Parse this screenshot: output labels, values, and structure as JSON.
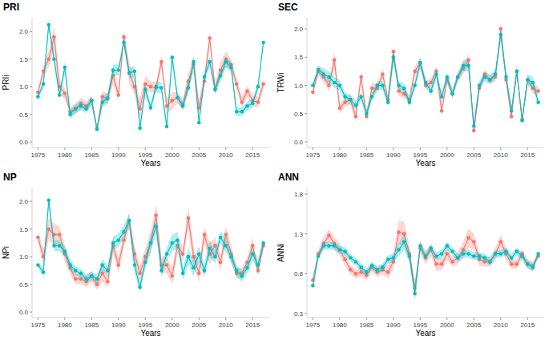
{
  "chart_data": [
    {
      "type": "line",
      "title": "PRI",
      "x_label": "Years",
      "y_label": "PRIi",
      "marker": "circle",
      "x": [
        1975,
        1976,
        1977,
        1978,
        1979,
        1980,
        1981,
        1982,
        1983,
        1984,
        1985,
        1986,
        1987,
        1988,
        1989,
        1990,
        1991,
        1992,
        1993,
        1994,
        1995,
        1996,
        1997,
        1998,
        1999,
        2000,
        2001,
        2002,
        2003,
        2004,
        2005,
        2006,
        2007,
        2008,
        2009,
        2010,
        2011,
        2012,
        2013,
        2014,
        2015,
        2016,
        2017
      ],
      "xlim": [
        1973.9,
        2018.1
      ],
      "xticks": [
        1975,
        1980,
        1985,
        1990,
        1995,
        2000,
        2005,
        2010,
        2015
      ],
      "ylim": [
        -0.1,
        2.25
      ],
      "yticks": [
        {
          "value": 0,
          "label": "0.0"
        },
        {
          "value": 0.5,
          "label": "0.5"
        },
        {
          "value": 1,
          "label": "1.0"
        },
        {
          "value": 1.5,
          "label": "1.5"
        },
        {
          "value": 2,
          "label": "2.0"
        }
      ],
      "series": [
        {
          "color": "#F8766D",
          "values": [
            0.9,
            1.28,
            1.5,
            1.9,
            1.0,
            0.88,
            0.55,
            0.6,
            0.7,
            0.65,
            0.75,
            0.25,
            0.82,
            0.78,
            1.2,
            0.85,
            1.9,
            1.25,
            1.0,
            0.6,
            1.05,
            1.0,
            0.98,
            1.45,
            0.65,
            0.75,
            0.8,
            0.68,
            1.1,
            1.4,
            0.62,
            1.1,
            1.88,
            0.95,
            1.3,
            1.5,
            1.4,
            1.05,
            0.72,
            0.92,
            0.75,
            0.72,
            1.05
          ],
          "error": [
            0.05,
            0.1,
            0.15,
            0.2,
            0.15,
            0.1,
            0.08,
            0.1,
            0.1,
            0.08,
            0.1,
            0.05,
            0.1,
            0.1,
            0.15,
            0.1,
            0.1,
            0.2,
            0.15,
            0.2,
            0.15,
            0.1,
            0.1,
            0.1,
            0.15,
            0.15,
            0.1,
            0.1,
            0.15,
            0.15,
            0.15,
            0.15,
            0.1,
            0.1,
            0.15,
            0.15,
            0.1,
            0.1,
            0.1,
            0.1,
            0.1,
            0.1,
            0.1
          ]
        },
        {
          "color": "#00BFC4",
          "values": [
            0.82,
            1.05,
            2.12,
            1.5,
            0.85,
            1.35,
            0.5,
            0.6,
            0.65,
            0.6,
            0.75,
            0.23,
            0.72,
            0.8,
            1.3,
            1.3,
            1.8,
            1.25,
            1.28,
            0.25,
            0.95,
            0.62,
            1.0,
            0.98,
            0.28,
            1.53,
            0.8,
            0.65,
            0.98,
            1.45,
            0.35,
            1.18,
            1.45,
            0.95,
            1.2,
            1.45,
            1.35,
            0.55,
            0.55,
            0.65,
            0.7,
            1.0,
            1.8
          ],
          "error": [
            0.05,
            0.08,
            0.1,
            0.1,
            0.08,
            0.1,
            0.08,
            0.08,
            0.08,
            0.08,
            0.08,
            0.05,
            0.1,
            0.1,
            0.1,
            0.1,
            0.08,
            0.1,
            0.1,
            0.05,
            0.1,
            0.08,
            0.1,
            0.1,
            0.05,
            0.1,
            0.08,
            0.08,
            0.1,
            0.1,
            0.05,
            0.1,
            0.1,
            0.08,
            0.1,
            0.1,
            0.1,
            0.08,
            0.08,
            0.08,
            0.08,
            0.08,
            0.05
          ]
        }
      ]
    },
    {
      "type": "line",
      "title": "SEC",
      "x_label": "Years",
      "y_label": "TRWi",
      "marker": "circle",
      "x": [
        1975,
        1976,
        1977,
        1978,
        1979,
        1980,
        1981,
        1982,
        1983,
        1984,
        1985,
        1986,
        1987,
        1988,
        1989,
        1990,
        1991,
        1992,
        1993,
        1994,
        1995,
        1996,
        1997,
        1998,
        1999,
        2000,
        2001,
        2002,
        2003,
        2004,
        2005,
        2006,
        2007,
        2008,
        2009,
        2010,
        2011,
        2012,
        2013,
        2014,
        2015,
        2016,
        2017
      ],
      "xlim": [
        1973.9,
        2018.1
      ],
      "xticks": [
        1975,
        1980,
        1985,
        1990,
        1995,
        2000,
        2005,
        2010,
        2015
      ],
      "ylim": [
        -0.1,
        2.2
      ],
      "yticks": [
        {
          "value": 0,
          "label": "0.0"
        },
        {
          "value": 0.5,
          "label": "0.5"
        },
        {
          "value": 1,
          "label": "1.0"
        },
        {
          "value": 1.5,
          "label": "1.5"
        },
        {
          "value": 2,
          "label": "2.0"
        }
      ],
      "series": [
        {
          "color": "#F8766D",
          "values": [
            0.88,
            1.25,
            1.15,
            1.0,
            1.45,
            0.6,
            0.7,
            0.75,
            0.45,
            1.15,
            0.45,
            0.95,
            0.95,
            1.2,
            0.75,
            1.6,
            0.9,
            0.85,
            0.75,
            1.25,
            1.4,
            1.0,
            1.05,
            1.25,
            0.55,
            1.1,
            0.85,
            1.15,
            1.3,
            1.45,
            0.2,
            0.95,
            1.2,
            1.1,
            1.15,
            2.0,
            1.1,
            0.45,
            1.25,
            0.4,
            1.1,
            0.95,
            0.9
          ],
          "error": [
            0.05,
            0.08,
            0.1,
            0.1,
            0.15,
            0.1,
            0.08,
            0.1,
            0.1,
            0.1,
            0.08,
            0.1,
            0.08,
            0.1,
            0.08,
            0.1,
            0.08,
            0.08,
            0.08,
            0.1,
            0.1,
            0.08,
            0.08,
            0.1,
            0.1,
            0.08,
            0.08,
            0.08,
            0.1,
            0.1,
            0.08,
            0.08,
            0.08,
            0.08,
            0.08,
            0.1,
            0.1,
            0.08,
            0.1,
            0.05,
            0.08,
            0.1,
            0.08
          ]
        },
        {
          "color": "#00BFC4",
          "values": [
            1.0,
            1.28,
            1.2,
            1.15,
            1.05,
            1.0,
            0.8,
            0.75,
            0.65,
            0.8,
            0.5,
            0.8,
            1.0,
            1.0,
            0.7,
            1.5,
            1.0,
            0.95,
            0.7,
            1.0,
            1.4,
            1.05,
            0.9,
            1.2,
            0.8,
            1.15,
            0.85,
            1.15,
            1.35,
            1.35,
            0.28,
            1.0,
            1.15,
            1.1,
            1.2,
            1.9,
            1.15,
            0.55,
            1.25,
            0.38,
            1.1,
            1.05,
            0.7
          ],
          "error": [
            0.05,
            0.08,
            0.1,
            0.1,
            0.1,
            0.1,
            0.08,
            0.08,
            0.08,
            0.08,
            0.08,
            0.08,
            0.08,
            0.08,
            0.08,
            0.1,
            0.08,
            0.08,
            0.08,
            0.08,
            0.1,
            0.08,
            0.08,
            0.1,
            0.08,
            0.08,
            0.08,
            0.08,
            0.1,
            0.1,
            0.05,
            0.08,
            0.08,
            0.08,
            0.08,
            0.1,
            0.08,
            0.08,
            0.08,
            0.05,
            0.1,
            0.1,
            0.08
          ]
        }
      ]
    },
    {
      "type": "line",
      "title": "NP",
      "x_label": "Years",
      "y_label": "NPi",
      "marker": "circle",
      "x": [
        1975,
        1976,
        1977,
        1978,
        1979,
        1980,
        1981,
        1982,
        1983,
        1984,
        1985,
        1986,
        1987,
        1988,
        1989,
        1990,
        1991,
        1992,
        1993,
        1994,
        1995,
        1996,
        1997,
        1998,
        1999,
        2000,
        2001,
        2002,
        2003,
        2004,
        2005,
        2006,
        2007,
        2008,
        2009,
        2010,
        2011,
        2012,
        2013,
        2014,
        2015,
        2016,
        2017
      ],
      "xlim": [
        1973.9,
        2018.1
      ],
      "xticks": [
        1975,
        1980,
        1985,
        1990,
        1995,
        2000,
        2005,
        2010,
        2015
      ],
      "ylim": [
        -0.1,
        2.25
      ],
      "yticks": [
        {
          "value": 0,
          "label": "0.0"
        },
        {
          "value": 0.5,
          "label": "0.5"
        },
        {
          "value": 1,
          "label": "1.0"
        },
        {
          "value": 1.5,
          "label": "1.5"
        },
        {
          "value": 2,
          "label": "2.0"
        }
      ],
      "series": [
        {
          "color": "#F8766D",
          "values": [
            1.35,
            1.0,
            1.5,
            1.4,
            1.4,
            1.05,
            0.8,
            0.6,
            0.6,
            0.55,
            0.65,
            0.5,
            0.7,
            0.55,
            1.2,
            0.85,
            1.3,
            1.65,
            1.05,
            0.7,
            1.0,
            1.25,
            1.75,
            0.85,
            0.85,
            0.65,
            1.2,
            1.05,
            1.7,
            1.0,
            0.7,
            1.4,
            1.05,
            1.2,
            0.9,
            1.4,
            1.05,
            0.7,
            0.7,
            0.9,
            1.2,
            0.75,
            1.2
          ],
          "error": [
            0.1,
            0.15,
            0.2,
            0.2,
            0.15,
            0.15,
            0.1,
            0.1,
            0.1,
            0.1,
            0.1,
            0.1,
            0.15,
            0.1,
            0.15,
            0.15,
            0.15,
            0.15,
            0.15,
            0.15,
            0.15,
            0.2,
            0.2,
            0.15,
            0.15,
            0.15,
            0.15,
            0.15,
            0.2,
            0.2,
            0.15,
            0.15,
            0.2,
            0.15,
            0.15,
            0.15,
            0.15,
            0.1,
            0.1,
            0.1,
            0.15,
            0.1,
            0.1
          ]
        },
        {
          "color": "#00BFC4",
          "values": [
            0.85,
            0.72,
            2.02,
            1.2,
            1.2,
            1.1,
            0.85,
            0.75,
            0.7,
            0.6,
            0.65,
            0.6,
            0.85,
            0.75,
            1.25,
            1.3,
            1.45,
            1.65,
            0.85,
            0.45,
            0.9,
            1.25,
            1.55,
            0.75,
            1.05,
            1.25,
            1.3,
            0.7,
            1.0,
            0.8,
            1.05,
            0.75,
            1.15,
            1.0,
            1.35,
            1.2,
            1.0,
            0.75,
            0.65,
            0.8,
            1.05,
            0.85,
            1.25
          ],
          "error": [
            0.05,
            0.08,
            0.1,
            0.1,
            0.1,
            0.1,
            0.1,
            0.08,
            0.08,
            0.08,
            0.08,
            0.08,
            0.1,
            0.1,
            0.12,
            0.12,
            0.12,
            0.12,
            0.15,
            0.1,
            0.12,
            0.15,
            0.15,
            0.12,
            0.12,
            0.15,
            0.15,
            0.12,
            0.15,
            0.15,
            0.15,
            0.12,
            0.15,
            0.12,
            0.12,
            0.12,
            0.12,
            0.1,
            0.1,
            0.1,
            0.12,
            0.1,
            0.08
          ]
        }
      ]
    },
    {
      "type": "line",
      "title": "ANN",
      "x_label": "Years",
      "y_label": "ANNi",
      "marker": "circle",
      "x": [
        1975,
        1976,
        1977,
        1978,
        1979,
        1980,
        1981,
        1982,
        1983,
        1984,
        1985,
        1986,
        1987,
        1988,
        1989,
        1990,
        1991,
        1992,
        1993,
        1994,
        1995,
        1996,
        1997,
        1998,
        1999,
        2000,
        2001,
        2002,
        2003,
        2004,
        2005,
        2006,
        2007,
        2008,
        2009,
        2010,
        2011,
        2012,
        2013,
        2014,
        2015,
        2016,
        2017
      ],
      "xlim": [
        1973.9,
        2018.1
      ],
      "xticks": [
        1975,
        1980,
        1985,
        1990,
        1995,
        2000,
        2005,
        2010,
        2015
      ],
      "ylim": [
        0.25,
        1.88
      ],
      "yticks": [
        0.3,
        0.8,
        1.3,
        1.8
      ],
      "series": [
        {
          "color": "#F8766D",
          "values": [
            0.72,
            1.05,
            1.18,
            1.28,
            1.18,
            1.1,
            0.98,
            0.85,
            0.8,
            0.82,
            0.78,
            0.88,
            0.82,
            0.85,
            0.82,
            0.95,
            1.32,
            1.3,
            1.05,
            0.62,
            1.12,
            1.0,
            1.1,
            0.92,
            0.92,
            1.05,
            0.95,
            1.0,
            1.1,
            1.25,
            1.2,
            0.98,
            0.95,
            0.95,
            1.05,
            1.2,
            1.05,
            0.92,
            0.92,
            1.05,
            0.92,
            0.9,
            1.02
          ],
          "error": [
            0.03,
            0.05,
            0.08,
            0.08,
            0.08,
            0.08,
            0.08,
            0.06,
            0.06,
            0.06,
            0.06,
            0.06,
            0.06,
            0.06,
            0.08,
            0.1,
            0.15,
            0.15,
            0.1,
            0.1,
            0.08,
            0.08,
            0.08,
            0.08,
            0.08,
            0.08,
            0.06,
            0.08,
            0.1,
            0.12,
            0.1,
            0.08,
            0.06,
            0.06,
            0.08,
            0.08,
            0.08,
            0.06,
            0.06,
            0.06,
            0.06,
            0.06,
            0.03
          ]
        },
        {
          "color": "#00BFC4",
          "values": [
            0.65,
            1.02,
            1.15,
            1.15,
            1.15,
            1.1,
            1.08,
            1.0,
            0.95,
            0.88,
            0.82,
            0.9,
            0.85,
            0.88,
            0.98,
            1.0,
            1.1,
            1.2,
            1.02,
            0.55,
            1.15,
            1.02,
            1.12,
            1.02,
            1.05,
            1.15,
            1.08,
            1.0,
            1.05,
            1.05,
            1.02,
            1.02,
            1.0,
            0.95,
            1.05,
            1.05,
            1.08,
            1.0,
            1.08,
            1.02,
            0.92,
            0.88,
            1.05
          ],
          "error": [
            0.03,
            0.04,
            0.05,
            0.05,
            0.05,
            0.05,
            0.05,
            0.05,
            0.05,
            0.05,
            0.05,
            0.05,
            0.05,
            0.05,
            0.05,
            0.06,
            0.08,
            0.1,
            0.08,
            0.1,
            0.06,
            0.05,
            0.05,
            0.05,
            0.05,
            0.05,
            0.05,
            0.05,
            0.05,
            0.05,
            0.05,
            0.05,
            0.05,
            0.05,
            0.05,
            0.05,
            0.05,
            0.05,
            0.05,
            0.05,
            0.05,
            0.05,
            0.03
          ]
        }
      ]
    }
  ]
}
